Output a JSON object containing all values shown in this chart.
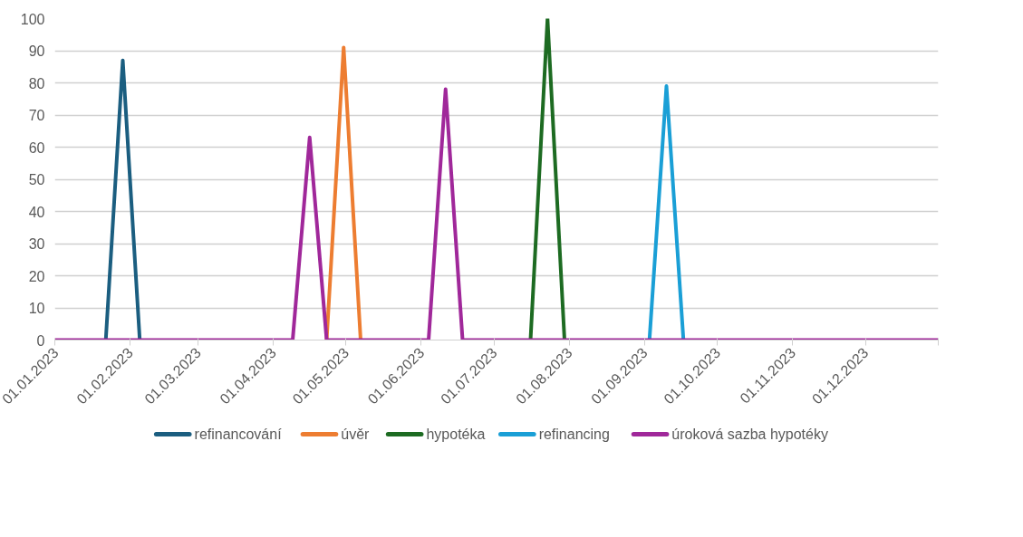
{
  "chart_data": {
    "type": "line",
    "ylim": [
      0,
      100
    ],
    "yticks": [
      0,
      10,
      20,
      30,
      40,
      50,
      60,
      70,
      80,
      90,
      100
    ],
    "xlim": [
      "2023-01-01",
      "2023-12-31"
    ],
    "xticks": [
      {
        "value": "2023-01-01",
        "label": "01.01.2023"
      },
      {
        "value": "2023-02-01",
        "label": "01.02.2023"
      },
      {
        "value": "2023-03-01",
        "label": "01.03.2023"
      },
      {
        "value": "2023-04-01",
        "label": "01.04.2023"
      },
      {
        "value": "2023-05-01",
        "label": "01.05.2023"
      },
      {
        "value": "2023-06-01",
        "label": "01.06.2023"
      },
      {
        "value": "2023-07-01",
        "label": "01.07.2023"
      },
      {
        "value": "2023-08-01",
        "label": "01.08.2023"
      },
      {
        "value": "2023-09-01",
        "label": "01.09.2023"
      },
      {
        "value": "2023-10-01",
        "label": "01.10.2023"
      },
      {
        "value": "2023-11-01",
        "label": "01.11.2023"
      },
      {
        "value": "2023-12-01",
        "label": "01.12.2023"
      },
      {
        "value": "2023-12-31",
        "label": null
      }
    ],
    "grid": "y",
    "legend": "bottom",
    "marker": "none",
    "line_style": "solid",
    "series": [
      {
        "name": "refinancování",
        "color": "#1b5e80",
        "x": [
          "2023-01-22",
          "2023-01-29",
          "2023-02-05"
        ],
        "values": [
          0,
          87,
          0
        ]
      },
      {
        "name": "úvěr",
        "color": "#ed7d31",
        "x": [
          "2023-04-23",
          "2023-04-30",
          "2023-05-07"
        ],
        "values": [
          0,
          91,
          0
        ]
      },
      {
        "name": "hypotéka",
        "color": "#1d6b22",
        "x": [
          "2023-07-16",
          "2023-07-23",
          "2023-07-30"
        ],
        "values": [
          0,
          100,
          0
        ]
      },
      {
        "name": "refinancing",
        "color": "#1a9fd6",
        "x": [
          "2023-09-03",
          "2023-09-10",
          "2023-09-17"
        ],
        "values": [
          0,
          79,
          0
        ]
      },
      {
        "name": "úroková sazba hypotéky",
        "color": "#a0289a",
        "x": [
          "2023-01-01",
          "2023-04-09",
          "2023-04-16",
          "2023-04-23",
          "2023-06-04",
          "2023-06-11",
          "2023-06-18",
          "2023-12-31"
        ],
        "values": [
          0,
          0,
          63,
          0,
          0,
          78,
          0,
          0
        ]
      }
    ]
  }
}
